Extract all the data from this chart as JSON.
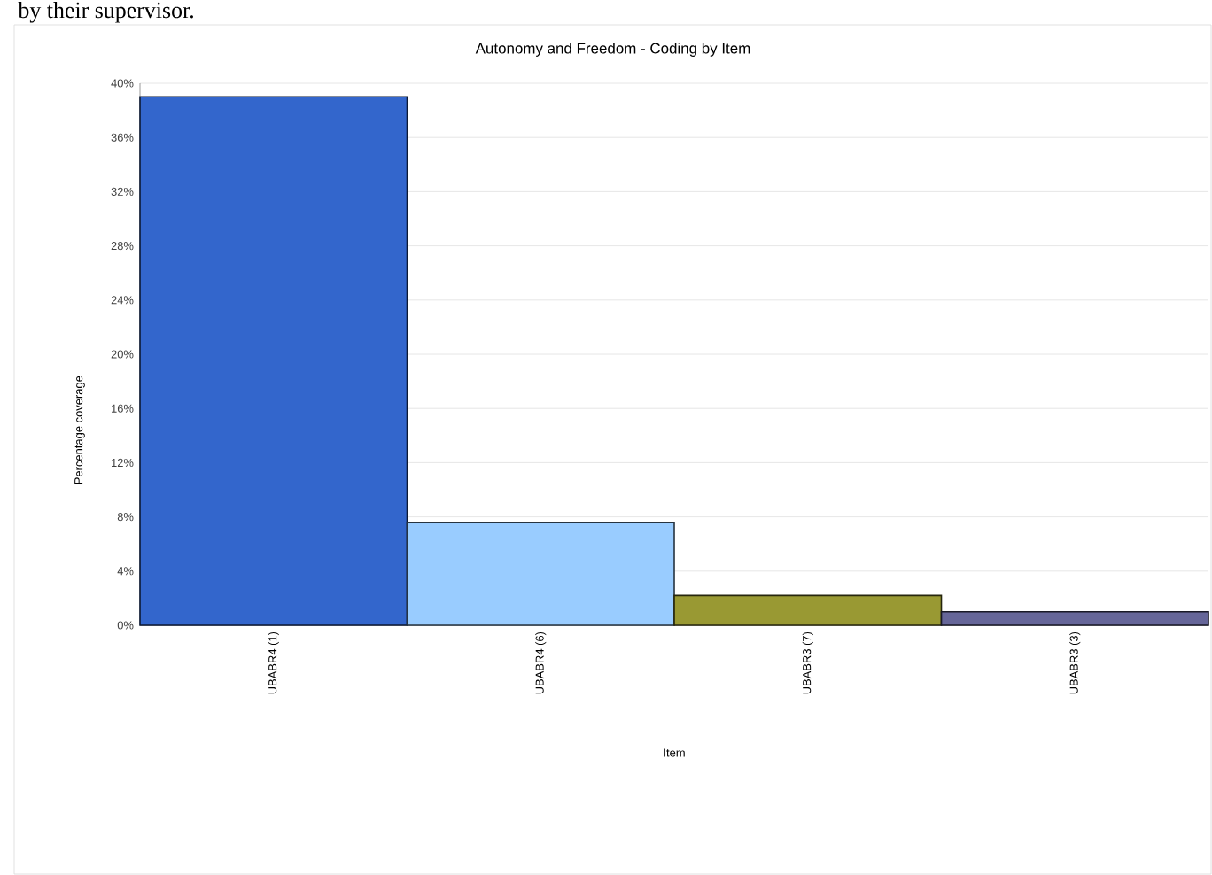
{
  "chart_data": {
    "type": "bar",
    "title": "Autonomy and Freedom - Coding by Item",
    "xlabel": "Item",
    "ylabel": "Percentage coverage",
    "annotations": [
      "by their supervisor."
    ],
    "categories": [
      "UBABR4 (1)",
      "UBABR4 (6)",
      "UBABR3 (7)",
      "UBABR3 (3)"
    ],
    "values": [
      39,
      7.6,
      2.2,
      1.0
    ],
    "colors": [
      "#3366cc",
      "#99ccff",
      "#999933",
      "#666699"
    ],
    "ylim": [
      0,
      40
    ],
    "yticks": [
      {
        "value": 0,
        "label": "0%"
      },
      {
        "value": 4,
        "label": "4%"
      },
      {
        "value": 8,
        "label": "8%"
      },
      {
        "value": 12,
        "label": "12%"
      },
      {
        "value": 16,
        "label": "16%"
      },
      {
        "value": 20,
        "label": "20%"
      },
      {
        "value": 24,
        "label": "24%"
      },
      {
        "value": 28,
        "label": "28%"
      },
      {
        "value": 32,
        "label": "32%"
      },
      {
        "value": 36,
        "label": "36%"
      },
      {
        "value": 40,
        "label": "40%"
      }
    ],
    "grid": "y"
  }
}
